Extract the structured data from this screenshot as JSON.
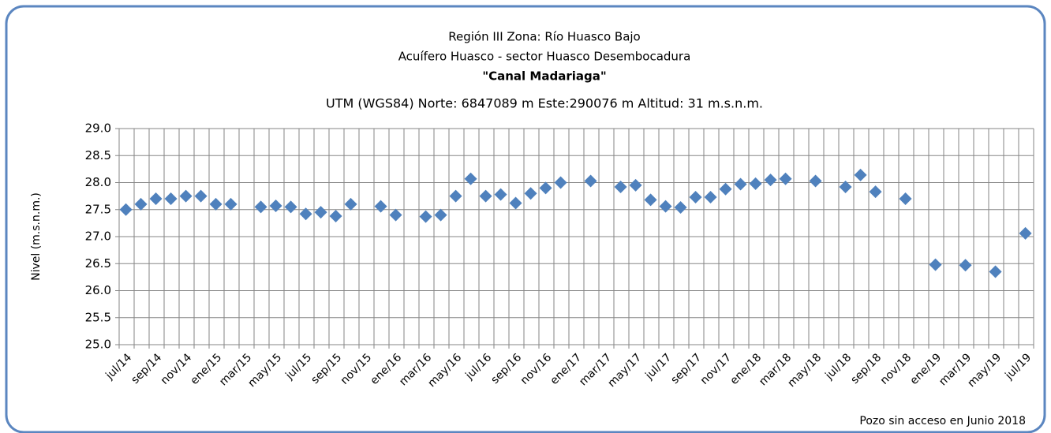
{
  "chart_data": {
    "type": "scatter",
    "title_lines": [
      "Región III  Zona: Río Huasco Bajo",
      "Acuífero Huasco - sector Huasco Desembocadura",
      "\"Canal Madariaga\"",
      "UTM (WGS84) Norte: 6847089 m   Este:290076 m   Altitud: 31 m.s.n.m."
    ],
    "y_label": "Nivel (m.s.n.m.)",
    "annotation": "Pozo sin acceso en Junio 2018",
    "categories": [
      "jul/14",
      null,
      "sep/14",
      null,
      "nov/14",
      null,
      "ene/15",
      null,
      "mar/15",
      null,
      "may/15",
      null,
      "jul/15",
      null,
      "sep/15",
      null,
      "nov/15",
      null,
      "ene/16",
      null,
      "mar/16",
      null,
      "may/16",
      null,
      "jul/16",
      null,
      "sep/16",
      null,
      "nov/16",
      null,
      "ene/17",
      null,
      "mar/17",
      null,
      "may/17",
      null,
      "jul/17",
      null,
      "sep/17",
      null,
      "nov/17",
      null,
      "ene/18",
      null,
      "mar/18",
      null,
      "may/18",
      null,
      "jul/18",
      null,
      "sep/18",
      null,
      "nov/18",
      null,
      "ene/19",
      null,
      "mar/19",
      null,
      "may/19",
      null,
      "jul/19"
    ],
    "values": [
      27.5,
      27.6,
      27.7,
      27.7,
      27.75,
      27.75,
      27.6,
      27.6,
      null,
      27.55,
      27.57,
      27.55,
      27.42,
      27.45,
      27.38,
      27.6,
      null,
      27.56,
      27.4,
      null,
      27.37,
      27.4,
      27.75,
      28.07,
      27.75,
      27.78,
      27.62,
      27.8,
      27.9,
      28.0,
      null,
      28.03,
      null,
      27.92,
      27.95,
      27.68,
      27.56,
      27.54,
      27.73,
      27.73,
      27.88,
      27.97,
      27.98,
      28.05,
      28.07,
      null,
      28.03,
      null,
      27.92,
      28.14,
      27.83,
      null,
      27.7,
      null,
      26.48,
      null,
      26.47,
      null,
      26.35,
      null,
      27.06
    ],
    "color": "#4f81bd",
    "ylim": [
      25,
      29
    ],
    "yticks": [
      {
        "value": 25,
        "label": "25.0"
      },
      25.5,
      {
        "value": 26,
        "label": "26.0"
      },
      26.5,
      {
        "value": 27,
        "label": "27.0"
      },
      27.5,
      {
        "value": 28,
        "label": "28.0"
      },
      28.5,
      {
        "value": 29,
        "label": "29.0"
      }
    ],
    "grid": true
  }
}
